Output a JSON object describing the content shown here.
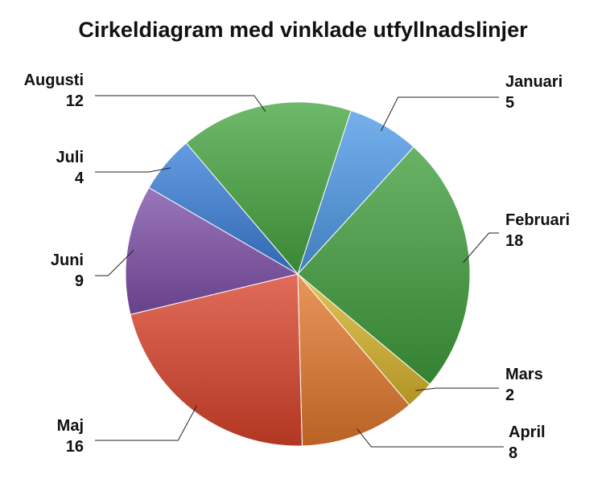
{
  "title": "Cirkeldiagram med vinklade utfyllnadslinjer",
  "chart_data": {
    "type": "pie",
    "title": "Cirkeldiagram med vinklade utfyllnadslinjer",
    "slices": [
      {
        "label": "Januari",
        "value": 5,
        "color": "#4e9ae6"
      },
      {
        "label": "Februari",
        "value": 18,
        "color": "#3f9d3c"
      },
      {
        "label": "Mars",
        "value": 2,
        "color": "#d8b52c"
      },
      {
        "label": "April",
        "value": 8,
        "color": "#e3782d"
      },
      {
        "label": "Maj",
        "value": 16,
        "color": "#d9432b"
      },
      {
        "label": "Juni",
        "value": 9,
        "color": "#7d4fa8"
      },
      {
        "label": "Juli",
        "value": 4,
        "color": "#3a7fd8"
      },
      {
        "label": "Augusti",
        "value": 12,
        "color": "#45a540"
      }
    ],
    "labels": "outside with angled leader lines"
  }
}
